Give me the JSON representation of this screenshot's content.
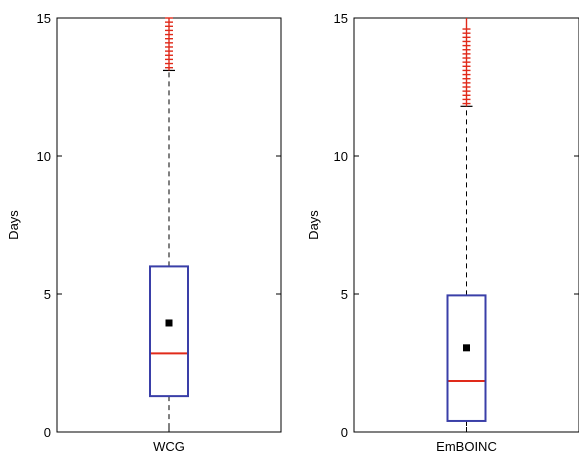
{
  "chart_data": [
    {
      "type": "box",
      "category": "WCG",
      "ylabel": "Days",
      "ylim": [
        0,
        15
      ],
      "yticks": [
        0,
        5,
        10,
        15
      ],
      "box": {
        "whisker_low": 0,
        "q1": 1.3,
        "median": 2.85,
        "q3": 6.0,
        "whisker_high": 13.1,
        "mean": 3.95
      },
      "outliers_range": [
        13.1,
        15
      ],
      "outliers": [
        13.2,
        13.35,
        13.5,
        13.65,
        13.8,
        13.95,
        14.1,
        14.25,
        14.4,
        14.55,
        14.7,
        14.85,
        15.0
      ]
    },
    {
      "type": "box",
      "category": "EmBOINC",
      "ylabel": "Days",
      "ylim": [
        0,
        15
      ],
      "yticks": [
        0,
        5,
        10,
        15
      ],
      "box": {
        "whisker_low": 0,
        "q1": 0.4,
        "median": 1.85,
        "q3": 4.95,
        "whisker_high": 11.8,
        "mean": 3.05
      },
      "outliers_range": [
        11.8,
        15
      ],
      "outliers": [
        11.9,
        12.05,
        12.2,
        12.35,
        12.5,
        12.65,
        12.8,
        12.95,
        13.1,
        13.25,
        13.4,
        13.55,
        13.7,
        13.85,
        14.0,
        14.15,
        14.3,
        14.45,
        14.6
      ]
    }
  ],
  "colors": {
    "box": "#3a3fa8",
    "median": "#e02a1a",
    "outlier": "#e02a1a",
    "whisker": "#000000",
    "mean": "#000000"
  }
}
